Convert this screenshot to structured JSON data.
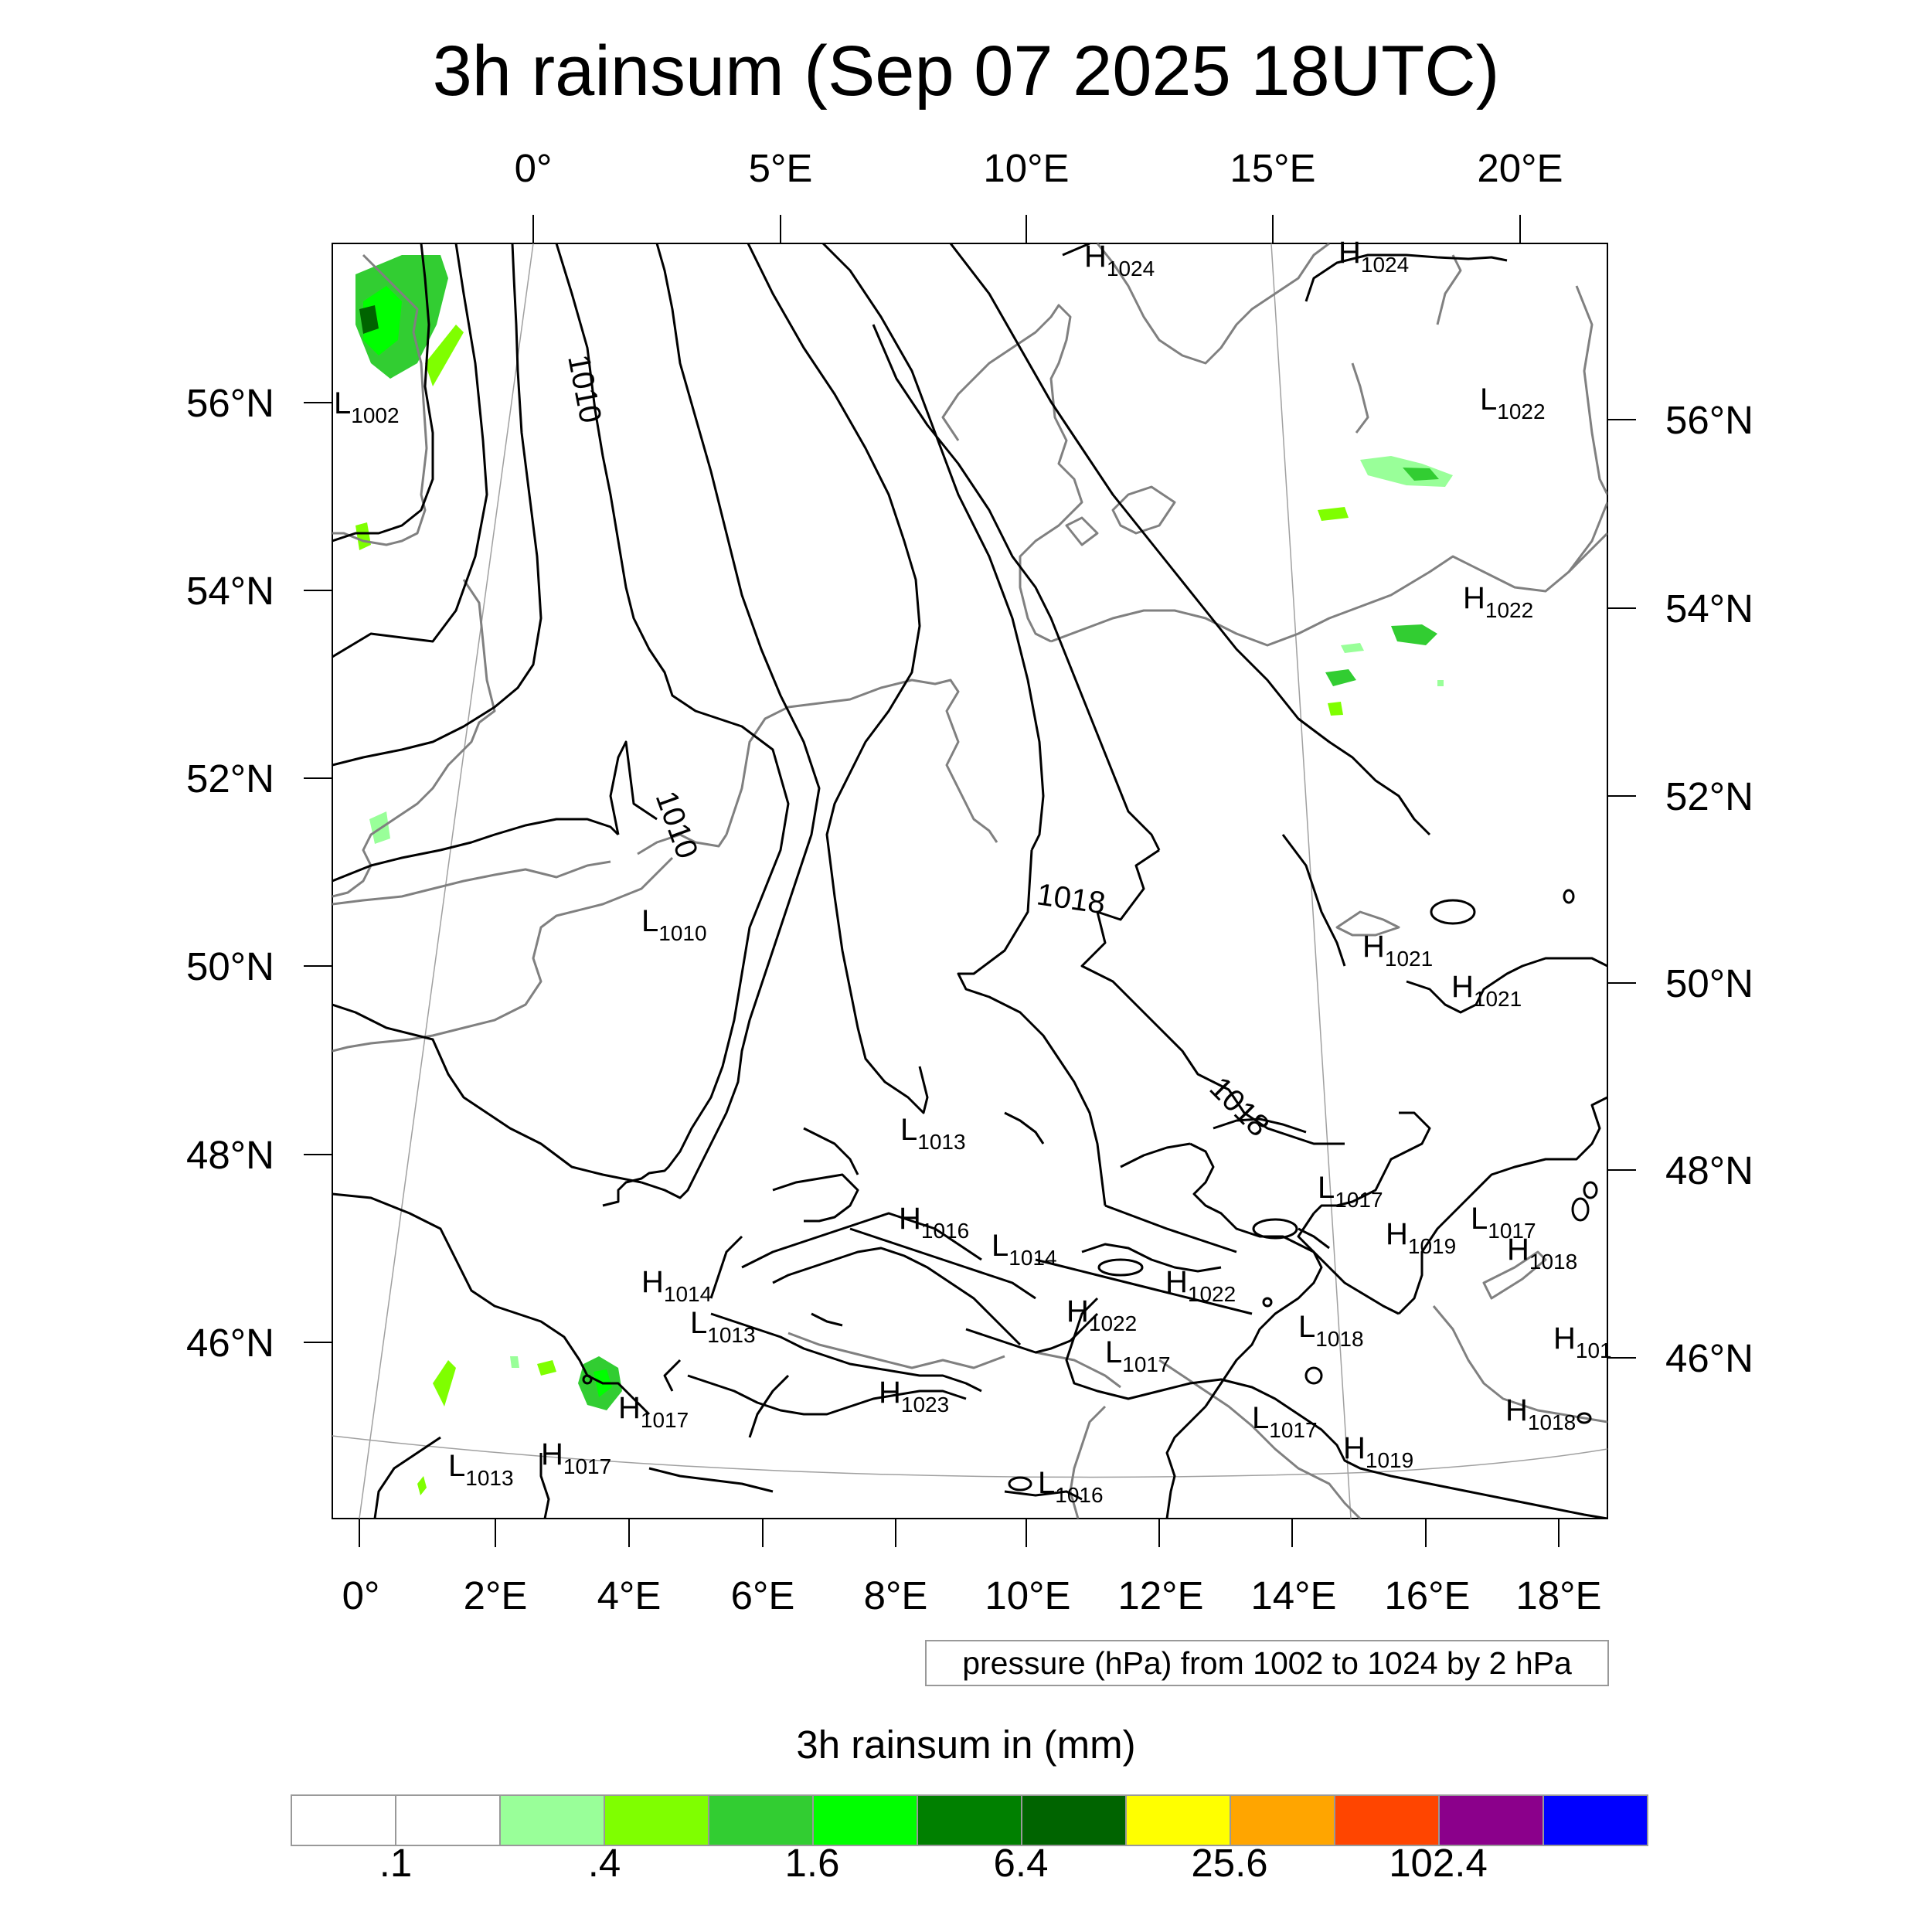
{
  "title": "3h rainsum (Sep 07 2025 18UTC)",
  "map": {
    "top_lon_labels": [
      "0°",
      "5°E",
      "10°E",
      "15°E",
      "20°E"
    ],
    "bottom_lon_labels": [
      "0°",
      "2°E",
      "4°E",
      "6°E",
      "8°E",
      "10°E",
      "12°E",
      "14°E",
      "16°E",
      "18°E"
    ],
    "left_lat_labels": [
      "56°N",
      "54°N",
      "52°N",
      "50°N",
      "48°N",
      "46°N"
    ],
    "right_lat_labels": [
      "56°N",
      "54°N",
      "52°N",
      "50°N",
      "48°N",
      "46°N"
    ],
    "isobar_labels": [
      "1010",
      "1010",
      "1018",
      "1018"
    ],
    "pressure_centers": [
      {
        "type": "L",
        "value": "1002"
      },
      {
        "type": "H",
        "value": "1024"
      },
      {
        "type": "H",
        "value": "1024"
      },
      {
        "type": "L",
        "value": "1022"
      },
      {
        "type": "H",
        "value": "1022"
      },
      {
        "type": "L",
        "value": "1010"
      },
      {
        "type": "H",
        "value": "1021"
      },
      {
        "type": "H",
        "value": "1021"
      },
      {
        "type": "L",
        "value": "1013"
      },
      {
        "type": "L",
        "value": "1017"
      },
      {
        "type": "H",
        "value": "1016"
      },
      {
        "type": "L",
        "value": "1014"
      },
      {
        "type": "H",
        "value": "1019"
      },
      {
        "type": "L",
        "value": "1017"
      },
      {
        "type": "H",
        "value": "1018"
      },
      {
        "type": "H",
        "value": "1014"
      },
      {
        "type": "L",
        "value": "1013"
      },
      {
        "type": "H",
        "value": "1022"
      },
      {
        "type": "H",
        "value": "1022"
      },
      {
        "type": "L",
        "value": "1018"
      },
      {
        "type": "L",
        "value": "1017"
      },
      {
        "type": "H",
        "value": "101"
      },
      {
        "type": "H",
        "value": "1017"
      },
      {
        "type": "H",
        "value": "1023"
      },
      {
        "type": "L",
        "value": "1017"
      },
      {
        "type": "H",
        "value": "1018"
      },
      {
        "type": "H",
        "value": "1019"
      },
      {
        "type": "L",
        "value": "1013"
      },
      {
        "type": "H",
        "value": "1017"
      },
      {
        "type": "L",
        "value": "1016"
      }
    ],
    "colors": {
      "isobar": "#000000",
      "coastline": "#808080",
      "graticule": "#a0a0a0"
    }
  },
  "info_box": "pressure (hPa) from 1002 to 1024 by 2 hPa",
  "colorbar": {
    "title": "3h rainsum in (mm)",
    "colors": [
      "#ffffff",
      "#ffffff",
      "#99ff99",
      "#7fff00",
      "#32cd32",
      "#00ff00",
      "#008000",
      "#006400",
      "#ffff00",
      "#ffa500",
      "#ff4500",
      "#8b008b",
      "#0000ff"
    ],
    "labels": [
      ".1",
      ".4",
      "1.6",
      "6.4",
      "25.6",
      "102.4"
    ]
  }
}
